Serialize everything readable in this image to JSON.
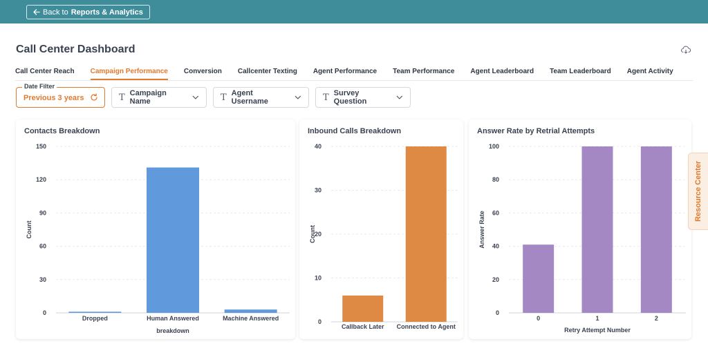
{
  "header": {
    "back_prefix": "Back to",
    "back_target": "Reports & Analytics",
    "page_title": "Call Center Dashboard"
  },
  "tabs": [
    {
      "label": "Call Center Reach",
      "active": false
    },
    {
      "label": "Campaign Performance",
      "active": true
    },
    {
      "label": "Conversion",
      "active": false
    },
    {
      "label": "Callcenter Texting",
      "active": false
    },
    {
      "label": "Agent Performance",
      "active": false
    },
    {
      "label": "Team Performance",
      "active": false
    },
    {
      "label": "Agent Leaderboard",
      "active": false
    },
    {
      "label": "Team Leaderboard",
      "active": false
    },
    {
      "label": "Agent Activity",
      "active": false
    }
  ],
  "filters": {
    "date_label": "Date Filter",
    "date_value": "Previous 3 years",
    "campaign": "Campaign Name",
    "agent": "Agent Username",
    "survey": "Survey Question"
  },
  "resource_center": "Resource Center",
  "colors": {
    "accent": "#e07a2e",
    "topbar": "#3f8c9a",
    "blue": "#6199dd",
    "orange": "#de8944",
    "purple": "#a488c4"
  },
  "chart_data": [
    {
      "type": "bar",
      "title": "Contacts Breakdown",
      "categories": [
        "Dropped",
        "Human Answered",
        "Machine Answered"
      ],
      "values": [
        1,
        131,
        3
      ],
      "xlabel": "breakdown",
      "ylabel": "Count",
      "ylim": [
        0,
        150
      ],
      "yticks": [
        0,
        30,
        60,
        90,
        120,
        150
      ],
      "color": "#6199dd"
    },
    {
      "type": "bar",
      "title": "Inbound Calls Breakdown",
      "categories": [
        "Callback Later",
        "Connected to Agent"
      ],
      "values": [
        6,
        40
      ],
      "xlabel": "",
      "ylabel": "Count",
      "ylim": [
        0,
        40
      ],
      "yticks": [
        0,
        10,
        20,
        30,
        40
      ],
      "color": "#de8944"
    },
    {
      "type": "bar",
      "title": "Answer Rate by Retrial Attempts",
      "categories": [
        "0",
        "1",
        "2"
      ],
      "values": [
        41,
        100,
        100
      ],
      "xlabel": "Retry Attempt Number",
      "ylabel": "Answer Rate",
      "ylim": [
        0,
        100
      ],
      "yticks": [
        0,
        20,
        40,
        60,
        80,
        100
      ],
      "color": "#a488c4"
    }
  ]
}
